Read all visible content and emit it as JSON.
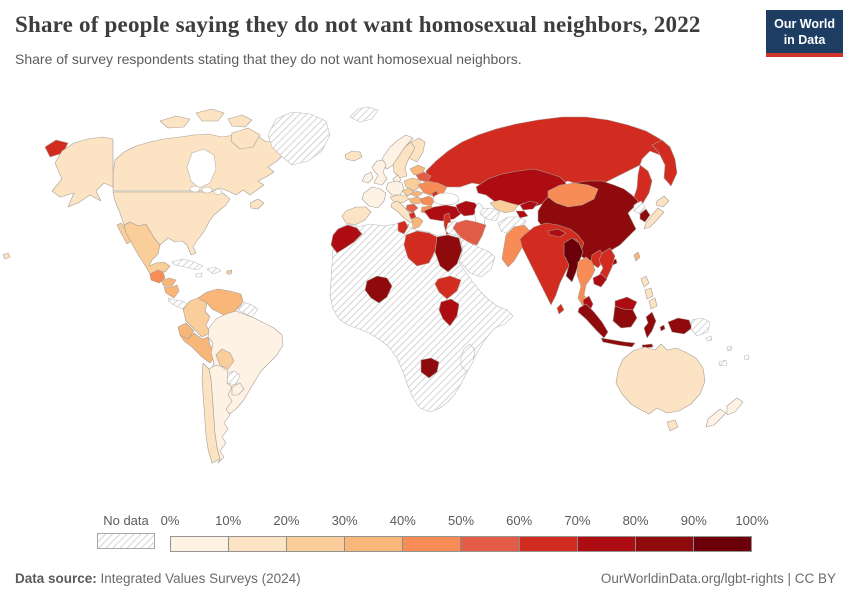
{
  "header": {
    "title": "Share of people saying they do not want homosexual neighbors, 2022",
    "subtitle": "Share of survey respondents stating that they do not want homosexual neighbors.",
    "logo_line1": "Our World",
    "logo_line2": "in Data"
  },
  "legend": {
    "no_data_label": "No data",
    "tick_labels": [
      "0%",
      "10%",
      "20%",
      "30%",
      "40%",
      "50%",
      "60%",
      "70%",
      "80%",
      "90%",
      "100%"
    ]
  },
  "footer": {
    "source_label": "Data source:",
    "source_value": " Integrated Values Surveys (2024)",
    "credit": "OurWorldinData.org/lgbt-rights | CC BY"
  },
  "colors": {
    "logo_navy": "#1d3d63",
    "logo_red": "#d0342c",
    "text_gray": "#5b5b5b",
    "country_border": "#a89f96",
    "no_data_border": "#bdbdbd",
    "hatch_line": "#c9c9c9"
  },
  "chart_data": {
    "type": "choropleth",
    "title": "Share of people saying they do not want homosexual neighbors, 2022",
    "unit": "%",
    "legend_position": "bottom",
    "bins": [
      {
        "label": "0-10%",
        "color": "#FDF2E4"
      },
      {
        "label": "10-20%",
        "color": "#FBE3C3"
      },
      {
        "label": "20-30%",
        "color": "#F9CE9A"
      },
      {
        "label": "30-40%",
        "color": "#F8B679"
      },
      {
        "label": "40-50%",
        "color": "#F78C57"
      },
      {
        "label": "50-60%",
        "color": "#E35C47"
      },
      {
        "label": "60-70%",
        "color": "#D22B20"
      },
      {
        "label": "70-80%",
        "color": "#AD0C12"
      },
      {
        "label": "80-90%",
        "color": "#8F0A0D"
      },
      {
        "label": "90-100%",
        "color": "#6B000A"
      }
    ],
    "no_data": {
      "label": "No data",
      "pattern": "diagonal-hatch"
    },
    "countries": [
      {
        "name": "United States",
        "range": "10-20%"
      },
      {
        "name": "Canada",
        "range": "10-20%"
      },
      {
        "name": "Greenland",
        "range": "No data"
      },
      {
        "name": "Svalbard",
        "range": "No data"
      },
      {
        "name": "Iceland",
        "range": "10-20%"
      },
      {
        "name": "Mexico",
        "range": "20-30%"
      },
      {
        "name": "Guatemala",
        "range": "40-50%"
      },
      {
        "name": "Honduras",
        "range": "30-40%"
      },
      {
        "name": "Nicaragua",
        "range": "30-40%"
      },
      {
        "name": "Costa Rica",
        "range": "No data"
      },
      {
        "name": "Panama",
        "range": "No data"
      },
      {
        "name": "Cuba",
        "range": "No data"
      },
      {
        "name": "Haiti",
        "range": "No data"
      },
      {
        "name": "Jamaica",
        "range": "No data"
      },
      {
        "name": "Puerto Rico",
        "range": "20-30%"
      },
      {
        "name": "Colombia",
        "range": "20-30%"
      },
      {
        "name": "Venezuela",
        "range": "30-40%"
      },
      {
        "name": "Guyana",
        "range": "No data"
      },
      {
        "name": "Ecuador",
        "range": "30-40%"
      },
      {
        "name": "Peru",
        "range": "30-40%"
      },
      {
        "name": "Bolivia",
        "range": "20-30%"
      },
      {
        "name": "Brazil",
        "range": "0-10%"
      },
      {
        "name": "Paraguay",
        "range": "No data"
      },
      {
        "name": "Chile",
        "range": "10-20%"
      },
      {
        "name": "Argentina",
        "range": "0-10%"
      },
      {
        "name": "Uruguay",
        "range": "0-10%"
      },
      {
        "name": "United Kingdom",
        "range": "0-10%"
      },
      {
        "name": "Ireland",
        "range": "0-10%"
      },
      {
        "name": "Norway",
        "range": "0-10%"
      },
      {
        "name": "Sweden",
        "range": "10-20%"
      },
      {
        "name": "Finland",
        "range": "10-20%"
      },
      {
        "name": "Denmark",
        "range": "0-10%"
      },
      {
        "name": "France",
        "range": "0-10%"
      },
      {
        "name": "Spain",
        "range": "10-20%"
      },
      {
        "name": "Germany",
        "range": "0-10%"
      },
      {
        "name": "Austria",
        "range": "10-20%"
      },
      {
        "name": "Italy",
        "range": "10-20%"
      },
      {
        "name": "Poland",
        "range": "20-30%"
      },
      {
        "name": "Czechia",
        "range": "20-30%"
      },
      {
        "name": "Slovakia",
        "range": "30-40%"
      },
      {
        "name": "Hungary",
        "range": "30-40%"
      },
      {
        "name": "Serbia",
        "range": "50-60%"
      },
      {
        "name": "Albania",
        "range": "60-70%"
      },
      {
        "name": "Greece",
        "range": "30-40%"
      },
      {
        "name": "Romania",
        "range": "40-50%"
      },
      {
        "name": "Bulgaria",
        "range": "40-50%"
      },
      {
        "name": "Ukraine",
        "range": "40-50%"
      },
      {
        "name": "Belarus",
        "range": "50-60%"
      },
      {
        "name": "Moldova",
        "range": "60-70%"
      },
      {
        "name": "Lithuania",
        "range": "30-40%"
      },
      {
        "name": "Russia",
        "range": "60-70%"
      },
      {
        "name": "Turkey",
        "range": "70-80%"
      },
      {
        "name": "Georgia",
        "range": "70-80%"
      },
      {
        "name": "Kazakhstan",
        "range": "70-80%"
      },
      {
        "name": "Uzbekistan",
        "range": "20-30%"
      },
      {
        "name": "Turkmenistan",
        "range": "No data"
      },
      {
        "name": "Kyrgyzstan",
        "range": "70-80%"
      },
      {
        "name": "Tajikistan",
        "range": "70-80%"
      },
      {
        "name": "Afghanistan",
        "range": "No data"
      },
      {
        "name": "Iran",
        "range": "50-60%"
      },
      {
        "name": "Iraq",
        "range": "No data"
      },
      {
        "name": "Jordan",
        "range": "60-70%"
      },
      {
        "name": "Saudi Arabia",
        "range": "No data"
      },
      {
        "name": "Egypt",
        "range": "80-90%"
      },
      {
        "name": "Libya",
        "range": "60-70%"
      },
      {
        "name": "Tunisia",
        "range": "60-70%"
      },
      {
        "name": "Algeria",
        "range": "No data"
      },
      {
        "name": "Morocco",
        "range": "70-80%"
      },
      {
        "name": "Africa (unsurveyed regions)",
        "range": "No data"
      },
      {
        "name": "Nigeria",
        "range": "80-90%"
      },
      {
        "name": "Ethiopia",
        "range": "60-70%"
      },
      {
        "name": "Kenya",
        "range": "70-80%"
      },
      {
        "name": "Zimbabwe",
        "range": "80-90%"
      },
      {
        "name": "Madagascar",
        "range": "No data"
      },
      {
        "name": "Pakistan",
        "range": "40-50%"
      },
      {
        "name": "India",
        "range": "60-70%"
      },
      {
        "name": "Sri Lanka",
        "range": "60-70%"
      },
      {
        "name": "Nepal",
        "range": "70-80%"
      },
      {
        "name": "Bangladesh",
        "range": "70-80%"
      },
      {
        "name": "China",
        "range": "80-90%"
      },
      {
        "name": "Mongolia",
        "range": "40-50%"
      },
      {
        "name": "North Korea",
        "range": "No data"
      },
      {
        "name": "South Korea",
        "range": "80-90%"
      },
      {
        "name": "Japan",
        "range": "10-20%"
      },
      {
        "name": "Taiwan",
        "range": "30-40%"
      },
      {
        "name": "Myanmar",
        "range": "90-100%"
      },
      {
        "name": "Thailand",
        "range": "40-50%"
      },
      {
        "name": "Laos",
        "range": "60-70%"
      },
      {
        "name": "Vietnam",
        "range": "60-70%"
      },
      {
        "name": "Cambodia",
        "range": "70-80%"
      },
      {
        "name": "Malaysia",
        "range": "70-80%"
      },
      {
        "name": "Indonesia",
        "range": "80-90%"
      },
      {
        "name": "Philippines",
        "range": "10-20%"
      },
      {
        "name": "Papua New Guinea",
        "range": "No data"
      },
      {
        "name": "Australia",
        "range": "10-20%"
      },
      {
        "name": "New Zealand",
        "range": "0-10%"
      },
      {
        "name": "Fiji",
        "range": "No data"
      },
      {
        "name": "New Caledonia",
        "range": "No data"
      },
      {
        "name": "Solomon Islands",
        "range": "No data"
      },
      {
        "name": "Vanuatu",
        "range": "No data"
      }
    ]
  }
}
